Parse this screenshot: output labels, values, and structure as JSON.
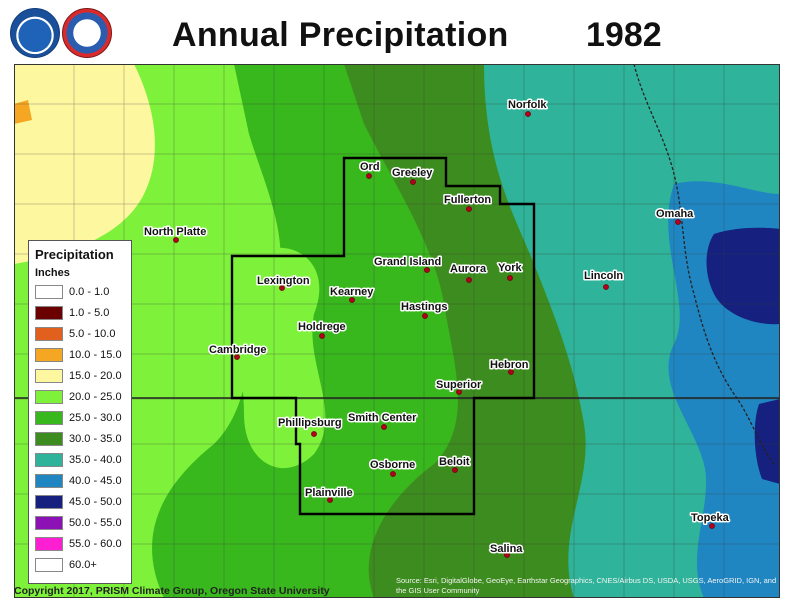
{
  "title": "Annual Precipitation",
  "year": "1982",
  "logos": [
    {
      "name": "NOAA",
      "icon": "noaa-logo"
    },
    {
      "name": "National Weather Service",
      "icon": "nws-logo"
    }
  ],
  "legend": {
    "title": "Precipitation",
    "units": "Inches",
    "items": [
      {
        "label": "0.0 - 1.0",
        "color": "#ffffff"
      },
      {
        "label": "1.0 - 5.0",
        "color": "#6b0000"
      },
      {
        "label": "5.0 - 10.0",
        "color": "#e2601e"
      },
      {
        "label": "10.0 - 15.0",
        "color": "#f5a623"
      },
      {
        "label": "15.0 - 20.0",
        "color": "#fdf7a0"
      },
      {
        "label": "20.0 - 25.0",
        "color": "#7ef23b"
      },
      {
        "label": "25.0 - 30.0",
        "color": "#38b81c"
      },
      {
        "label": "30.0 - 35.0",
        "color": "#3d8c1f"
      },
      {
        "label": "35.0 - 40.0",
        "color": "#2fb39a"
      },
      {
        "label": "40.0 - 45.0",
        "color": "#1f86c2"
      },
      {
        "label": "45.0 - 50.0",
        "color": "#16207e"
      },
      {
        "label": "50.0 - 55.0",
        "color": "#8c12b5"
      },
      {
        "label": "55.0 - 60.0",
        "color": "#ff1fd2"
      },
      {
        "label": "60.0+",
        "color": "#ffffff"
      }
    ]
  },
  "cities": [
    {
      "name": "Norfolk"
    },
    {
      "name": "Ord"
    },
    {
      "name": "Greeley"
    },
    {
      "name": "Fullerton"
    },
    {
      "name": "Omaha"
    },
    {
      "name": "North Platte"
    },
    {
      "name": "Grand Island"
    },
    {
      "name": "Aurora"
    },
    {
      "name": "York"
    },
    {
      "name": "Lincoln"
    },
    {
      "name": "Lexington"
    },
    {
      "name": "Kearney"
    },
    {
      "name": "Hastings"
    },
    {
      "name": "Holdrege"
    },
    {
      "name": "Cambridge"
    },
    {
      "name": "Hebron"
    },
    {
      "name": "Superior"
    },
    {
      "name": "Phillipsburg"
    },
    {
      "name": "Smith Center"
    },
    {
      "name": "Osborne"
    },
    {
      "name": "Beloit"
    },
    {
      "name": "Plainville"
    },
    {
      "name": "Topeka"
    },
    {
      "name": "Salina"
    }
  ],
  "footer": {
    "copyright": "Copyright 2017, PRISM Climate Group, Oregon State University",
    "source": "Source: Esri, DigitalGlobe, GeoEye, Earthstar Geographics, CNES/Airbus DS, USDA, USGS, AeroGRID, IGN, and the GIS User Community"
  }
}
